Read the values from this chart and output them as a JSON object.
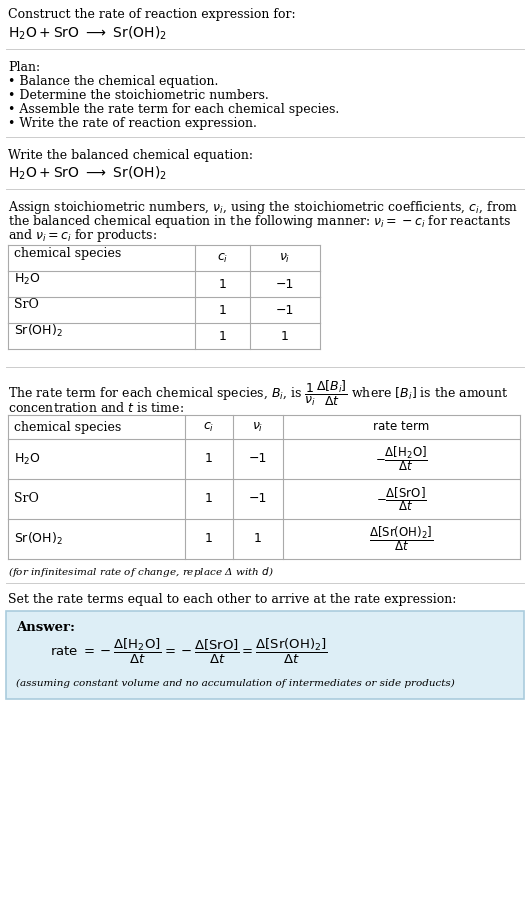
{
  "bg_color": "#ffffff",
  "text_color": "#000000",
  "title_text": "Construct the rate of reaction expression for:",
  "plan_header": "Plan:",
  "plan_items": [
    "• Balance the chemical equation.",
    "• Determine the stoichiometric numbers.",
    "• Assemble the rate term for each chemical species.",
    "• Write the rate of reaction expression."
  ],
  "balanced_eq_header": "Write the balanced chemical equation:",
  "stoich_intro": "Assign stoichiometric numbers, $\\nu_i$, using the stoichiometric coefficients, $c_i$, from\nthe balanced chemical equation in the following manner: $\\nu_i = -c_i$ for reactants\nand $\\nu_i = c_i$ for products:",
  "table1_headers": [
    "chemical species",
    "$c_i$",
    "$\\nu_i$"
  ],
  "table1_rows": [
    [
      "$\\mathrm{H_2O}$",
      "1",
      "−1"
    ],
    [
      "SrO",
      "1",
      "−1"
    ],
    [
      "$\\mathrm{Sr(OH)_2}$",
      "1",
      "1"
    ]
  ],
  "rate_intro_part1": "The rate term for each chemical species, $B_i$, is $\\dfrac{1}{\\nu_i}\\dfrac{\\Delta[B_i]}{\\Delta t}$ where $[B_i]$ is the amount",
  "rate_intro_part2": "concentration and $t$ is time:",
  "table2_headers": [
    "chemical species",
    "$c_i$",
    "$\\nu_i$",
    "rate term"
  ],
  "table2_rows": [
    [
      "$\\mathrm{H_2O}$",
      "1",
      "−1",
      "$-\\dfrac{\\Delta[\\mathrm{H_2O}]}{\\Delta t}$"
    ],
    [
      "SrO",
      "1",
      "−1",
      "$-\\dfrac{\\Delta[\\mathrm{SrO}]}{\\Delta t}$"
    ],
    [
      "$\\mathrm{Sr(OH)_2}$",
      "1",
      "1",
      "$\\dfrac{\\Delta[\\mathrm{Sr(OH)_2}]}{\\Delta t}$"
    ]
  ],
  "infinitesimal_note": "(for infinitesimal rate of change, replace Δ with $d$)",
  "set_rate_text": "Set the rate terms equal to each other to arrive at the rate expression:",
  "answer_box_color": "#ddeef6",
  "answer_box_border": "#aaccdd",
  "answer_label": "Answer:",
  "answer_note": "(assuming constant volume and no accumulation of intermediates or side products)",
  "line_color": "#cccccc",
  "table_line_color": "#aaaaaa",
  "fs": 9.0,
  "fs_small": 7.5
}
